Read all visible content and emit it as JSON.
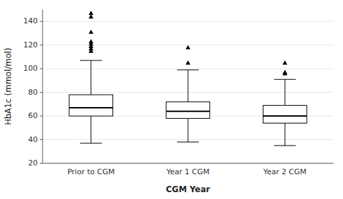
{
  "chart_data": {
    "type": "box",
    "categories": [
      "Prior to CGM",
      "Year 1 CGM",
      "Year 2 CGM"
    ],
    "xlabel": "CGM Year",
    "ylabel": "HbA1c (mmol/mol)",
    "ylim": [
      20,
      150
    ],
    "yticks": [
      20,
      40,
      60,
      80,
      100,
      120,
      140
    ],
    "values": [
      {
        "q1": 60,
        "median": 67,
        "q3": 78,
        "whisker_low": 37,
        "whisker_high": 107,
        "fliers": [
          115,
          117,
          119,
          121,
          123,
          131,
          144,
          147
        ]
      },
      {
        "q1": 58,
        "median": 64,
        "q3": 72,
        "whisker_low": 38,
        "whisker_high": 99,
        "fliers": [
          105,
          118
        ]
      },
      {
        "q1": 54,
        "median": 60,
        "q3": 69,
        "whisker_low": 35,
        "whisker_high": 91,
        "fliers": [
          96,
          97,
          105
        ]
      }
    ],
    "color": "#000000",
    "marker": "triangle"
  }
}
